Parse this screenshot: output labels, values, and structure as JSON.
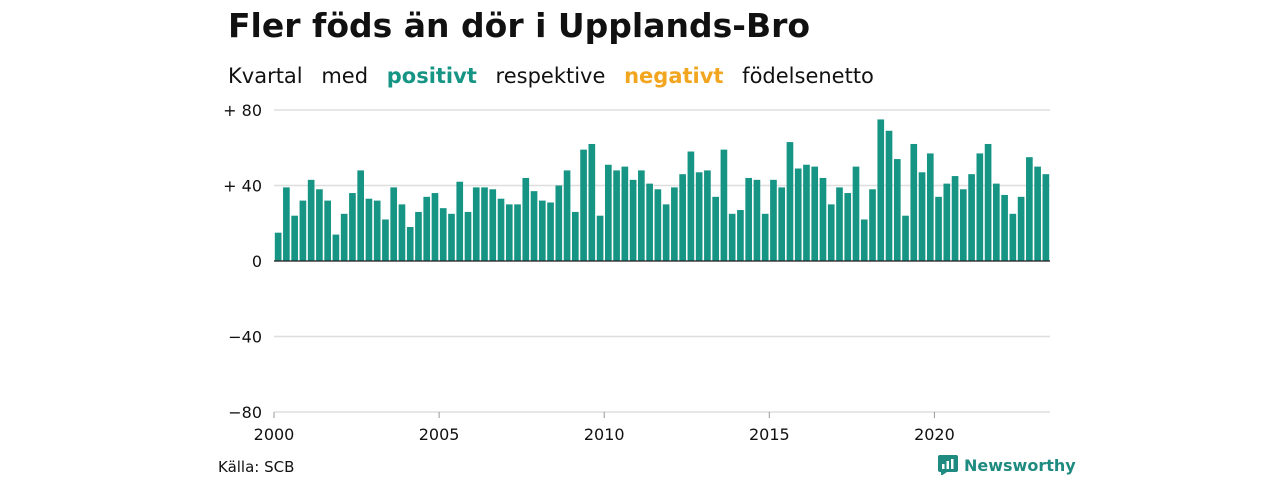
{
  "title": "Fler föds än dör i Upplands-Bro",
  "subtitle": {
    "part1": "Kvartal",
    "part2": "med",
    "positive": "positivt",
    "part3": "respektive",
    "negative": "negativt",
    "part4": "födelsenetto"
  },
  "source": "Källa: SCB",
  "brand": "Newsworthy",
  "colors": {
    "positive": "#169484",
    "negative": "#f2a51f",
    "brand": "#1f8a7f"
  },
  "chart_data": {
    "type": "bar",
    "title": "Fler föds än dör i Upplands-Bro",
    "ylim": [
      -80,
      80
    ],
    "yticks": [
      {
        "value": 80,
        "label": "+ 80"
      },
      {
        "value": 40,
        "label": "+ 40"
      },
      {
        "value": 0,
        "label": "0"
      },
      {
        "value": -40,
        "label": "−40"
      },
      {
        "value": -80,
        "label": "−80"
      }
    ],
    "xticks": [
      "2000",
      "2005",
      "2010",
      "2015",
      "2020"
    ],
    "x_start_year": 2000,
    "series": [
      {
        "values": [
          15,
          39,
          24,
          32,
          43,
          38,
          32,
          14,
          25,
          36,
          48,
          33,
          32,
          22,
          39,
          30,
          18,
          26,
          34,
          36,
          28,
          25,
          42,
          26,
          39,
          39,
          38,
          33,
          30,
          30,
          44,
          37,
          32,
          31,
          40,
          48,
          26,
          59,
          62,
          24,
          51,
          48,
          50,
          43,
          48,
          41,
          38,
          30,
          39,
          46,
          58,
          47,
          48,
          34,
          59,
          25,
          27,
          44,
          43,
          25,
          43,
          39,
          63,
          49,
          51,
          50,
          44,
          30,
          39,
          36,
          50,
          22,
          38,
          75,
          69,
          54,
          24,
          62,
          47,
          57,
          34,
          41,
          45,
          38,
          46,
          57,
          62,
          41,
          35,
          25,
          34,
          55,
          50,
          46
        ]
      }
    ]
  }
}
